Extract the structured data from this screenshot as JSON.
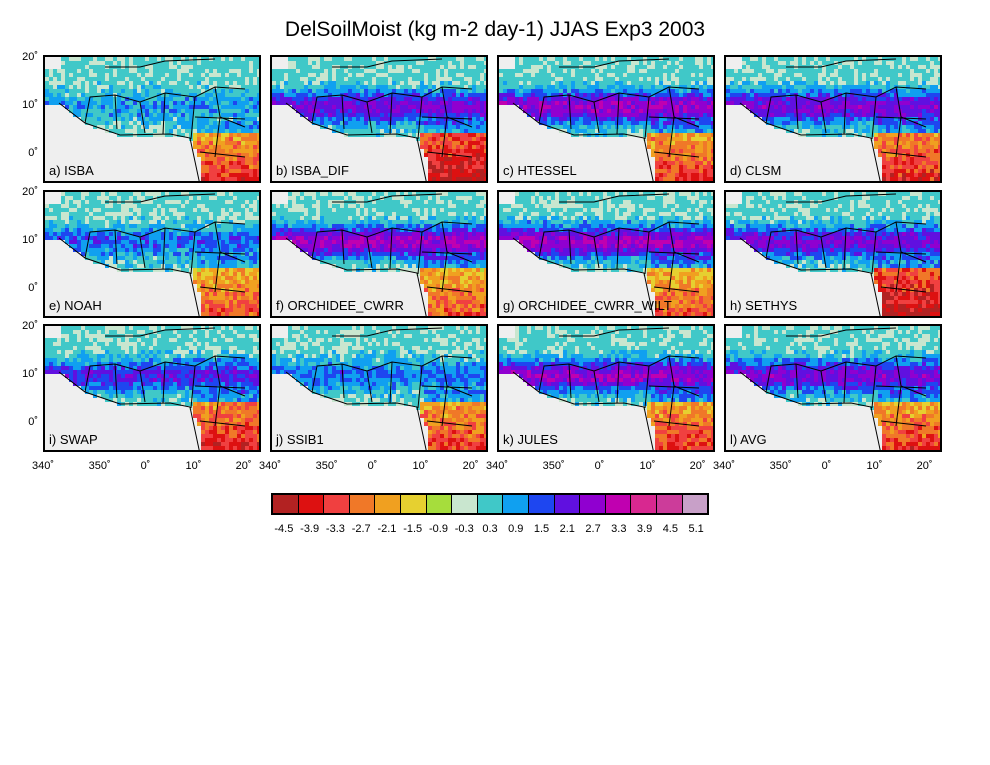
{
  "title": "DelSoilMoist (kg m-2 day-1) JJAS Exp3 2003",
  "panels": [
    {
      "label": "a) ISBA",
      "intensity": 0.9,
      "south_dry": 0.6
    },
    {
      "label": "b) ISBA_DIF",
      "intensity": 2.4,
      "south_dry": 0.9
    },
    {
      "label": "c) HTESSEL",
      "intensity": 2.8,
      "south_dry": 0.6
    },
    {
      "label": "d) CLSM",
      "intensity": 2.5,
      "south_dry": 0.7
    },
    {
      "label": "e) NOAH",
      "intensity": 1.4,
      "south_dry": 0.5
    },
    {
      "label": "f) ORCHIDEE_CWRR",
      "intensity": 2.9,
      "south_dry": 0.5
    },
    {
      "label": "g) ORCHIDEE_CWRR_WILT",
      "intensity": 2.9,
      "south_dry": 0.5
    },
    {
      "label": "h) SETHYS",
      "intensity": 2.4,
      "south_dry": 0.9
    },
    {
      "label": "i) SWAP",
      "intensity": 2.0,
      "south_dry": 0.7
    },
    {
      "label": "j) SSIB1",
      "intensity": 1.3,
      "south_dry": 0.6
    },
    {
      "label": "k) JULES",
      "intensity": 2.8,
      "south_dry": 0.6
    },
    {
      "label": "l) AVG",
      "intensity": 2.5,
      "south_dry": 0.6
    }
  ],
  "y_ticks": [
    "20˚",
    "10˚",
    "0˚"
  ],
  "x_ticks": [
    "340˚",
    "350˚",
    "0˚",
    "10˚",
    "20˚"
  ],
  "colorbar": {
    "labels": [
      "-4.5",
      "-3.9",
      "-3.3",
      "-2.7",
      "-2.1",
      "-1.5",
      "-0.9",
      "-0.3",
      "0.3",
      "0.9",
      "1.5",
      "2.1",
      "2.7",
      "3.3",
      "3.9",
      "4.5",
      "5.1"
    ],
    "colors": [
      "#b22222",
      "#dd1111",
      "#f04040",
      "#f07828",
      "#f0a020",
      "#e6d030",
      "#a6dd3c",
      "#c9e6cf",
      "#40c8c8",
      "#10a0f0",
      "#1e46f0",
      "#6010e0",
      "#9000d0",
      "#c000b0",
      "#d82890",
      "#cc3c9a",
      "#c8a0c8"
    ]
  }
}
